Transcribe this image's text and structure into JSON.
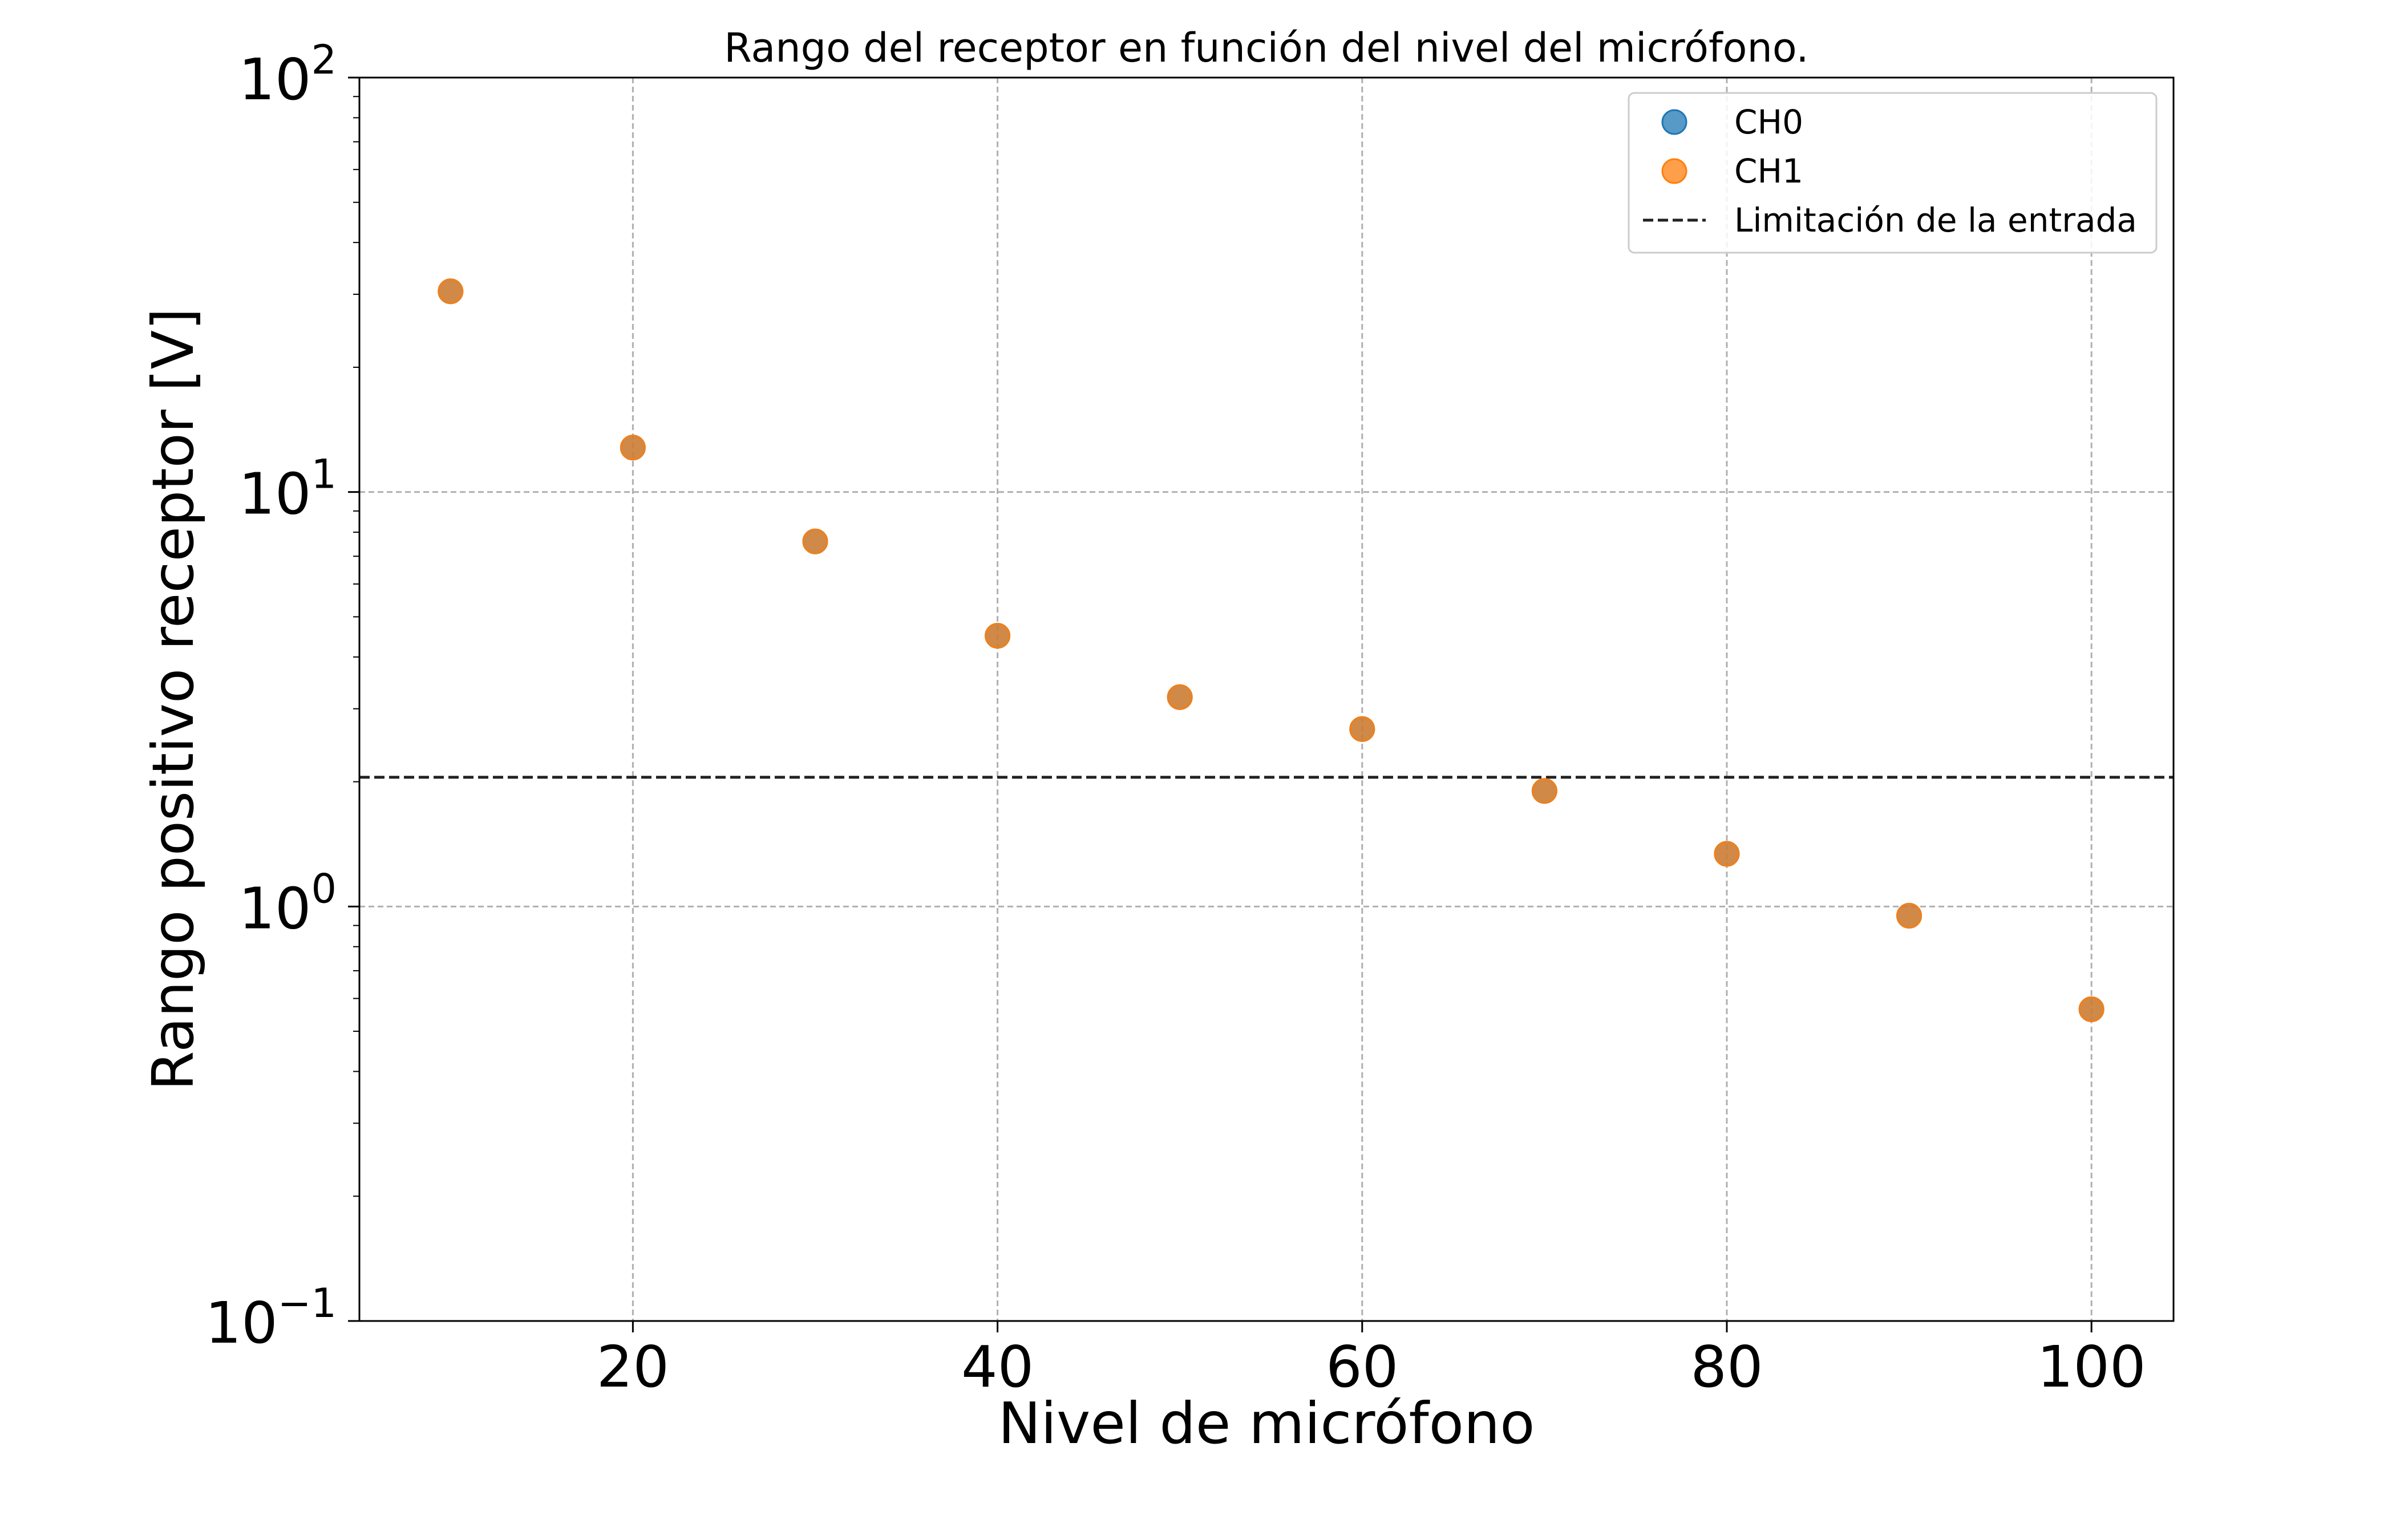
{
  "chart_data": {
    "type": "scatter",
    "title": "Rango del receptor en función del nivel del micrófono.",
    "xlabel": "Nivel de micrófono",
    "ylabel": "Rango positivo receptor [V]",
    "xlim": [
      5,
      104.5
    ],
    "ylim": [
      0.1,
      100
    ],
    "yscale": "log",
    "grid": true,
    "legend_position": "top-right",
    "x_ticks": [
      20,
      40,
      60,
      80,
      100
    ],
    "y_ticks": [
      {
        "value": 0.1,
        "base": "10",
        "exp": "−1"
      },
      {
        "value": 1,
        "base": "10",
        "exp": "0"
      },
      {
        "value": 10,
        "base": "10",
        "exp": "1"
      },
      {
        "value": 100,
        "base": "10",
        "exp": "2"
      }
    ],
    "series": [
      {
        "name": "CH0",
        "marker": "circle",
        "color": "#1f77b4",
        "x": [
          10,
          20,
          30,
          40,
          50,
          60,
          70,
          80,
          90,
          100
        ],
        "y": [
          30.5,
          12.8,
          7.6,
          4.5,
          3.2,
          2.68,
          1.9,
          1.34,
          0.95,
          0.565
        ]
      },
      {
        "name": "CH1",
        "marker": "circle",
        "color": "#ff7f0e",
        "x": [
          10,
          20,
          30,
          40,
          50,
          60,
          70,
          80,
          90,
          100
        ],
        "y": [
          30.5,
          12.8,
          7.6,
          4.5,
          3.2,
          2.68,
          1.9,
          1.34,
          0.95,
          0.565
        ]
      }
    ],
    "hlines": [
      {
        "name": "Limitación de la entrada",
        "y": 2.05,
        "color": "#222222",
        "style": "dashed"
      }
    ]
  }
}
